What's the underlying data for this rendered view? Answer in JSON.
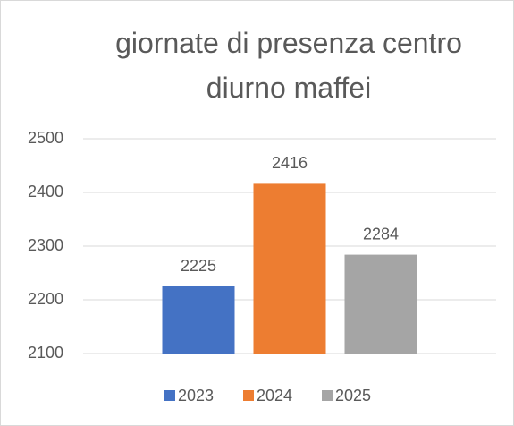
{
  "chart_data": {
    "type": "bar",
    "title": "giornate di presenza centro diurno maffei",
    "categories": [
      null
    ],
    "series": [
      {
        "name": "2023",
        "color": "#4472c4",
        "values": [
          2225
        ]
      },
      {
        "name": "2024",
        "color": "#ed7d31",
        "values": [
          2416
        ]
      },
      {
        "name": "2025",
        "color": "#a5a5a5",
        "values": [
          2284
        ]
      }
    ],
    "ylim": [
      2100,
      2500
    ],
    "yticks": [
      2100,
      2200,
      2300,
      2400,
      2500
    ],
    "grid": true,
    "legend": "bottom"
  }
}
